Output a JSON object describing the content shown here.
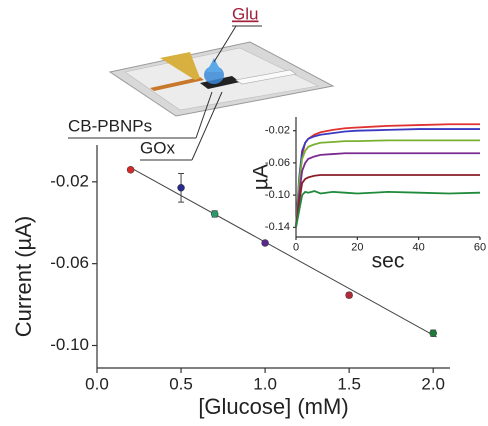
{
  "chart_data": [
    {
      "type": "scatter",
      "xlabel": "[Glucose] (mM)",
      "ylabel": "Current (µA)",
      "x": [
        0.2,
        0.5,
        0.7,
        1.0,
        1.5,
        2.0
      ],
      "values": [
        -0.0141,
        -0.0229,
        -0.0357,
        -0.0499,
        -0.0754,
        -0.094
      ],
      "errors": [
        0.001,
        0.007,
        0.0015,
        0.001,
        0.0012,
        0.0015
      ],
      "colors": [
        "#d42a2a",
        "#2a2a8a",
        "#2a9a6a",
        "#5a2a8a",
        "#b02a3a",
        "#1f7a3a"
      ],
      "fit": {
        "x": [
          0.2,
          2.02
        ],
        "values": [
          -0.0131,
          -0.0958
        ],
        "color": "#444444"
      },
      "xlim": [
        0,
        2.1
      ],
      "ylim": [
        -0.111,
        -0.002
      ],
      "xticks": [
        {
          "value": 0,
          "label": "0.0"
        },
        0.5,
        {
          "value": 1,
          "label": "1.0"
        },
        1.5,
        {
          "value": 2,
          "label": "2.0"
        }
      ],
      "yticks": [
        -0.02,
        -0.06,
        {
          "value": -0.1,
          "label": "-0.10"
        }
      ],
      "annotations": [
        "Glu",
        "CB-PBNPs",
        "GOx"
      ]
    },
    {
      "type": "line",
      "xlabel": "sec",
      "ylabel": "µA",
      "x": [
        0,
        1,
        2,
        3,
        4,
        6,
        8,
        12,
        16,
        20,
        30,
        40,
        50,
        60
      ],
      "series": [
        {
          "color": "#e03030",
          "values": [
            -0.14,
            -0.09,
            -0.05,
            -0.035,
            -0.03,
            -0.025,
            -0.022,
            -0.019,
            -0.017,
            -0.016,
            -0.014,
            -0.013,
            -0.012,
            -0.012
          ]
        },
        {
          "color": "#3a3ac0",
          "values": [
            -0.14,
            -0.08,
            -0.045,
            -0.035,
            -0.03,
            -0.027,
            -0.025,
            -0.023,
            -0.021,
            -0.02,
            -0.019,
            -0.018,
            -0.018,
            -0.018
          ]
        },
        {
          "color": "#7ab030",
          "values": [
            -0.14,
            -0.085,
            -0.055,
            -0.045,
            -0.04,
            -0.037,
            -0.035,
            -0.034,
            -0.033,
            -0.033,
            -0.032,
            -0.032,
            -0.032,
            -0.032
          ]
        },
        {
          "color": "#7a2a90",
          "values": [
            -0.14,
            -0.1,
            -0.07,
            -0.06,
            -0.055,
            -0.052,
            -0.05,
            -0.049,
            -0.048,
            -0.048,
            -0.048,
            -0.048,
            -0.048,
            -0.048
          ]
        },
        {
          "color": "#8a1f2a",
          "values": [
            -0.14,
            -0.11,
            -0.085,
            -0.08,
            -0.078,
            -0.076,
            -0.075,
            -0.075,
            -0.075,
            -0.075,
            -0.075,
            -0.075,
            -0.075,
            -0.075
          ]
        },
        {
          "color": "#1f8a3a",
          "values": [
            -0.14,
            -0.12,
            -0.1,
            -0.096,
            -0.097,
            -0.095,
            -0.098,
            -0.096,
            -0.097,
            -0.098,
            -0.096,
            -0.097,
            -0.098,
            -0.097
          ]
        }
      ],
      "xlim": [
        0,
        60
      ],
      "ylim": [
        -0.152,
        -0.003
      ],
      "xticks": [
        0,
        20,
        40,
        60
      ],
      "yticks": [
        -0.02,
        -0.06,
        {
          "value": -0.1,
          "label": "-0.10"
        },
        -0.14
      ]
    }
  ]
}
